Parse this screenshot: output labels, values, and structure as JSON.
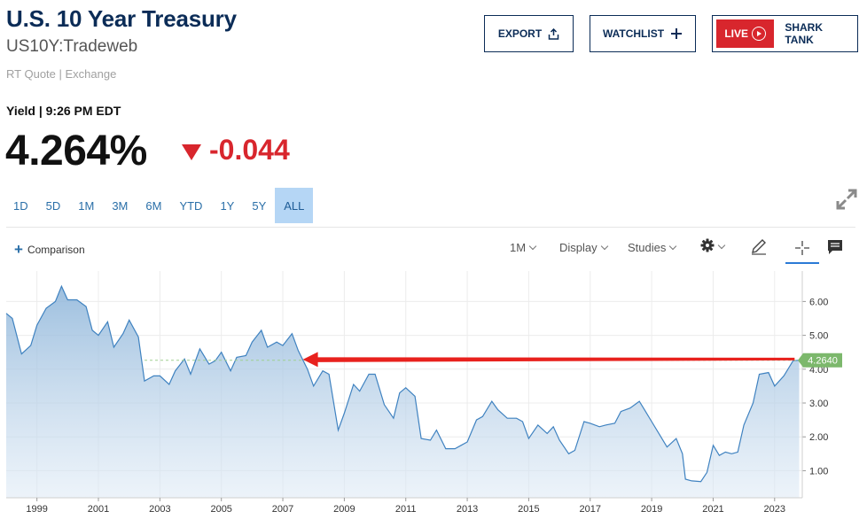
{
  "header": {
    "title": "U.S. 10 Year Treasury",
    "subtitle": "US10Y:Tradeweb",
    "quote_source": "RT Quote | Exchange",
    "export_label": "EXPORT",
    "watchlist_label": "WATCHLIST",
    "live_label": "LIVE",
    "shark_tank_label": "SHARK TANK"
  },
  "quote": {
    "yield_label": "Yield | 9:26 PM EDT",
    "price": "4.264%",
    "change": "-0.044",
    "direction": "down"
  },
  "ranges": [
    "1D",
    "5D",
    "1M",
    "3M",
    "6M",
    "YTD",
    "1Y",
    "5Y",
    "ALL"
  ],
  "active_range": "ALL",
  "toolbar": {
    "comparison_label": "Comparison",
    "interval_label": "1M",
    "display_label": "Display",
    "studies_label": "Studies",
    "icons": [
      "gear-icon",
      "pencil-icon",
      "crosshair-icon",
      "comment-icon",
      "expand-icon"
    ]
  },
  "colors": {
    "brand_navy": "#0b2c57",
    "accent_blue": "#2a6fa8",
    "negative_red": "#d8262d",
    "line": "#3f82c0",
    "last_value_badge": "#7cb86c",
    "arrow": "#e8211d"
  },
  "chart_data": {
    "type": "area",
    "x_unit": "year",
    "xlim": [
      1998.0,
      2023.9
    ],
    "ylim": [
      0.2,
      6.9
    ],
    "x_ticks": [
      "1999",
      "2001",
      "2003",
      "2005",
      "2007",
      "2009",
      "2011",
      "2013",
      "2015",
      "2017",
      "2019",
      "2021",
      "2023"
    ],
    "y_ticks": [
      "6.00",
      "5.00",
      "4.00",
      "3.00",
      "2.00",
      "1.00"
    ],
    "last_value_label": "4.2640",
    "last_value": 4.264,
    "reference_line": 4.264,
    "arrow": {
      "from": [
        2023.65,
        4.3
      ],
      "to": [
        2007.65,
        4.3
      ]
    },
    "x": [
      1998.0,
      1998.2,
      1998.5,
      1998.8,
      1999.0,
      1999.3,
      1999.6,
      1999.8,
      2000.0,
      2000.3,
      2000.6,
      2000.8,
      2001.0,
      2001.3,
      2001.5,
      2001.8,
      2002.0,
      2002.3,
      2002.5,
      2002.8,
      2003.0,
      2003.3,
      2003.5,
      2003.8,
      2004.0,
      2004.3,
      2004.6,
      2004.8,
      2005.0,
      2005.3,
      2005.5,
      2005.8,
      2006.0,
      2006.3,
      2006.5,
      2006.8,
      2007.0,
      2007.3,
      2007.5,
      2007.8,
      2008.0,
      2008.3,
      2008.5,
      2008.8,
      2009.0,
      2009.3,
      2009.5,
      2009.8,
      2010.0,
      2010.3,
      2010.6,
      2010.8,
      2011.0,
      2011.3,
      2011.5,
      2011.8,
      2012.0,
      2012.3,
      2012.6,
      2012.8,
      2013.0,
      2013.3,
      2013.5,
      2013.8,
      2014.0,
      2014.3,
      2014.6,
      2014.8,
      2015.0,
      2015.3,
      2015.6,
      2015.8,
      2016.0,
      2016.3,
      2016.5,
      2016.8,
      2017.0,
      2017.3,
      2017.5,
      2017.8,
      2018.0,
      2018.3,
      2018.6,
      2018.8,
      2019.0,
      2019.3,
      2019.5,
      2019.8,
      2020.0,
      2020.1,
      2020.3,
      2020.6,
      2020.8,
      2021.0,
      2021.2,
      2021.4,
      2021.6,
      2021.8,
      2022.0,
      2022.3,
      2022.5,
      2022.8,
      2023.0,
      2023.3,
      2023.6,
      2023.8
    ],
    "y": [
      5.65,
      5.5,
      4.45,
      4.7,
      5.3,
      5.8,
      6.0,
      6.45,
      6.05,
      6.05,
      5.85,
      5.15,
      5.0,
      5.4,
      4.65,
      5.05,
      5.45,
      4.95,
      3.65,
      3.8,
      3.8,
      3.55,
      3.95,
      4.3,
      3.85,
      4.6,
      4.15,
      4.25,
      4.5,
      3.95,
      4.35,
      4.4,
      4.8,
      5.15,
      4.65,
      4.8,
      4.7,
      5.05,
      4.55,
      4.0,
      3.5,
      3.95,
      3.85,
      2.2,
      2.7,
      3.55,
      3.35,
      3.85,
      3.85,
      2.95,
      2.55,
      3.3,
      3.45,
      3.2,
      1.95,
      1.9,
      2.2,
      1.65,
      1.65,
      1.75,
      1.85,
      2.5,
      2.6,
      3.05,
      2.8,
      2.55,
      2.55,
      2.45,
      1.95,
      2.35,
      2.1,
      2.3,
      1.9,
      1.5,
      1.6,
      2.45,
      2.4,
      2.3,
      2.35,
      2.4,
      2.75,
      2.85,
      3.05,
      2.75,
      2.45,
      2.0,
      1.7,
      1.95,
      1.5,
      0.75,
      0.7,
      0.68,
      0.95,
      1.75,
      1.45,
      1.55,
      1.5,
      1.55,
      2.35,
      3.0,
      3.85,
      3.9,
      3.5,
      3.8,
      4.25,
      4.264
    ]
  }
}
